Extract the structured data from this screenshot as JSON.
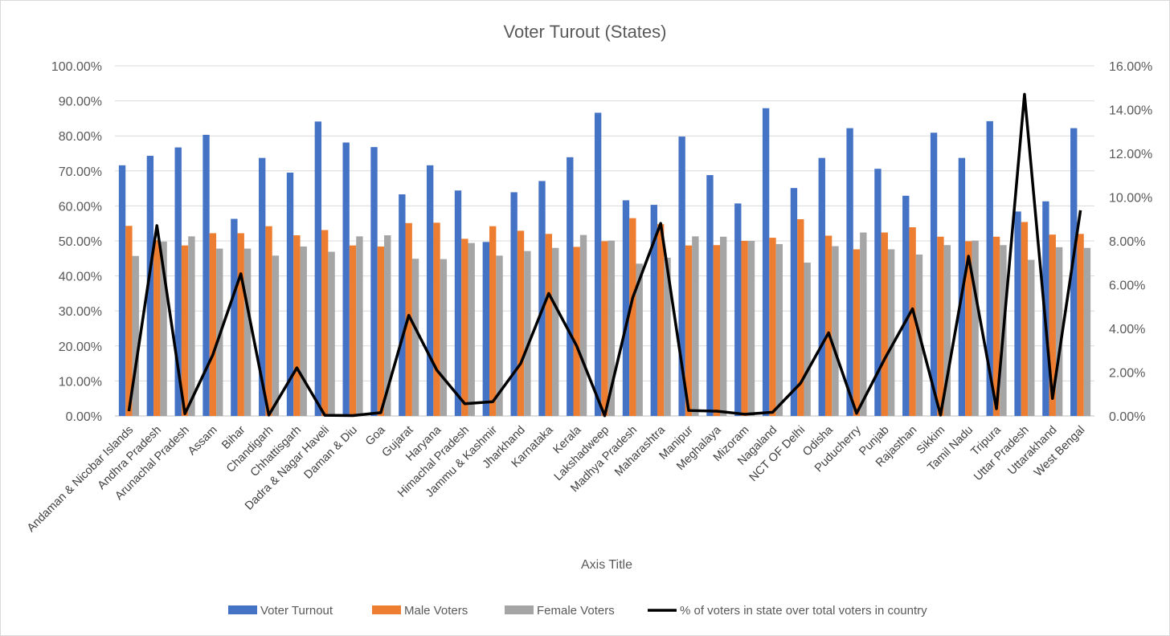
{
  "chart_data": {
    "type": "bar",
    "title": "Voter Turout (States)",
    "xlabel": "Axis Title",
    "ylabel": "",
    "y2label": "",
    "ylim": [
      0,
      100
    ],
    "y2lim": [
      0,
      16
    ],
    "yticks": [
      "0.00%",
      "10.00%",
      "20.00%",
      "30.00%",
      "40.00%",
      "50.00%",
      "60.00%",
      "70.00%",
      "80.00%",
      "90.00%",
      "100.00%"
    ],
    "y2ticks": [
      "0.00%",
      "2.00%",
      "4.00%",
      "6.00%",
      "8.00%",
      "10.00%",
      "12.00%",
      "14.00%",
      "16.00%"
    ],
    "grid": true,
    "legend_position": "bottom",
    "categories": [
      "Andaman & Nicobar Islands",
      "Andhra Pradesh",
      "Arunachal Pradesh",
      "Assam",
      "Bihar",
      "Chandigarh",
      "Chhattisgarh",
      "Dadra & Nagar Haveli",
      "Daman & Diu",
      "Goa",
      "Gujarat",
      "Haryana",
      "Himachal Pradesh",
      "Jammu & Kashmir",
      "Jharkhand",
      "Karnataka",
      "Kerala",
      "Lakshadweep",
      "Madhya Pradesh",
      "Maharashtra",
      "Manipur",
      "Meghalaya",
      "Mizoram",
      "Nagaland",
      "NCT OF Delhi",
      "Odisha",
      "Puducherry",
      "Punjab",
      "Rajasthan",
      "Sikkim",
      "Tamil Nadu",
      "Tripura",
      "Uttar Pradesh",
      "Uttarakhand",
      "West Bengal"
    ],
    "series": [
      {
        "name": "Voter Turnout",
        "type": "bar",
        "axis": "left",
        "color": "#4472C4",
        "values": [
          71.6,
          74.3,
          76.7,
          80.3,
          56.3,
          73.7,
          69.5,
          84.1,
          78.1,
          76.8,
          63.3,
          71.6,
          64.4,
          49.7,
          63.9,
          67.1,
          73.9,
          86.6,
          61.6,
          60.3,
          79.8,
          68.8,
          60.7,
          87.9,
          65.1,
          73.7,
          82.2,
          70.6,
          62.9,
          80.9,
          73.7,
          84.2,
          58.4,
          61.3,
          82.2
        ]
      },
      {
        "name": "Male Voters",
        "type": "bar",
        "axis": "left",
        "color": "#ED7D31",
        "values": [
          54.3,
          50.2,
          48.7,
          52.2,
          52.2,
          54.2,
          51.6,
          53.1,
          48.7,
          48.4,
          55.1,
          55.2,
          50.6,
          54.2,
          52.9,
          52.0,
          48.3,
          49.9,
          56.5,
          54.8,
          48.7,
          48.8,
          50.0,
          50.9,
          56.2,
          51.5,
          47.6,
          52.4,
          53.9,
          51.2,
          49.9,
          51.2,
          55.4,
          51.8,
          52.0
        ]
      },
      {
        "name": "Female Voters",
        "type": "bar",
        "axis": "left",
        "color": "#A5A5A5",
        "values": [
          45.7,
          49.8,
          51.3,
          47.8,
          47.8,
          45.8,
          48.4,
          46.9,
          51.3,
          51.6,
          44.9,
          44.8,
          49.4,
          45.8,
          47.1,
          48.0,
          51.7,
          50.1,
          43.5,
          45.2,
          51.3,
          51.2,
          50.0,
          49.1,
          43.8,
          48.5,
          52.4,
          47.6,
          46.1,
          48.8,
          50.1,
          48.8,
          44.6,
          48.2,
          48.0
        ]
      },
      {
        "name": "% of voters in state over total voters in country",
        "type": "line",
        "axis": "right",
        "color": "#000000",
        "values": [
          0.22,
          8.7,
          0.1,
          2.8,
          6.5,
          0.04,
          2.2,
          0.03,
          0.02,
          0.15,
          4.6,
          2.1,
          0.56,
          0.65,
          2.4,
          5.6,
          3.2,
          0.01,
          5.4,
          8.8,
          0.25,
          0.22,
          0.08,
          0.17,
          1.5,
          3.8,
          0.12,
          2.6,
          4.9,
          0.04,
          7.3,
          0.33,
          14.7,
          0.8,
          9.4
        ]
      }
    ]
  }
}
